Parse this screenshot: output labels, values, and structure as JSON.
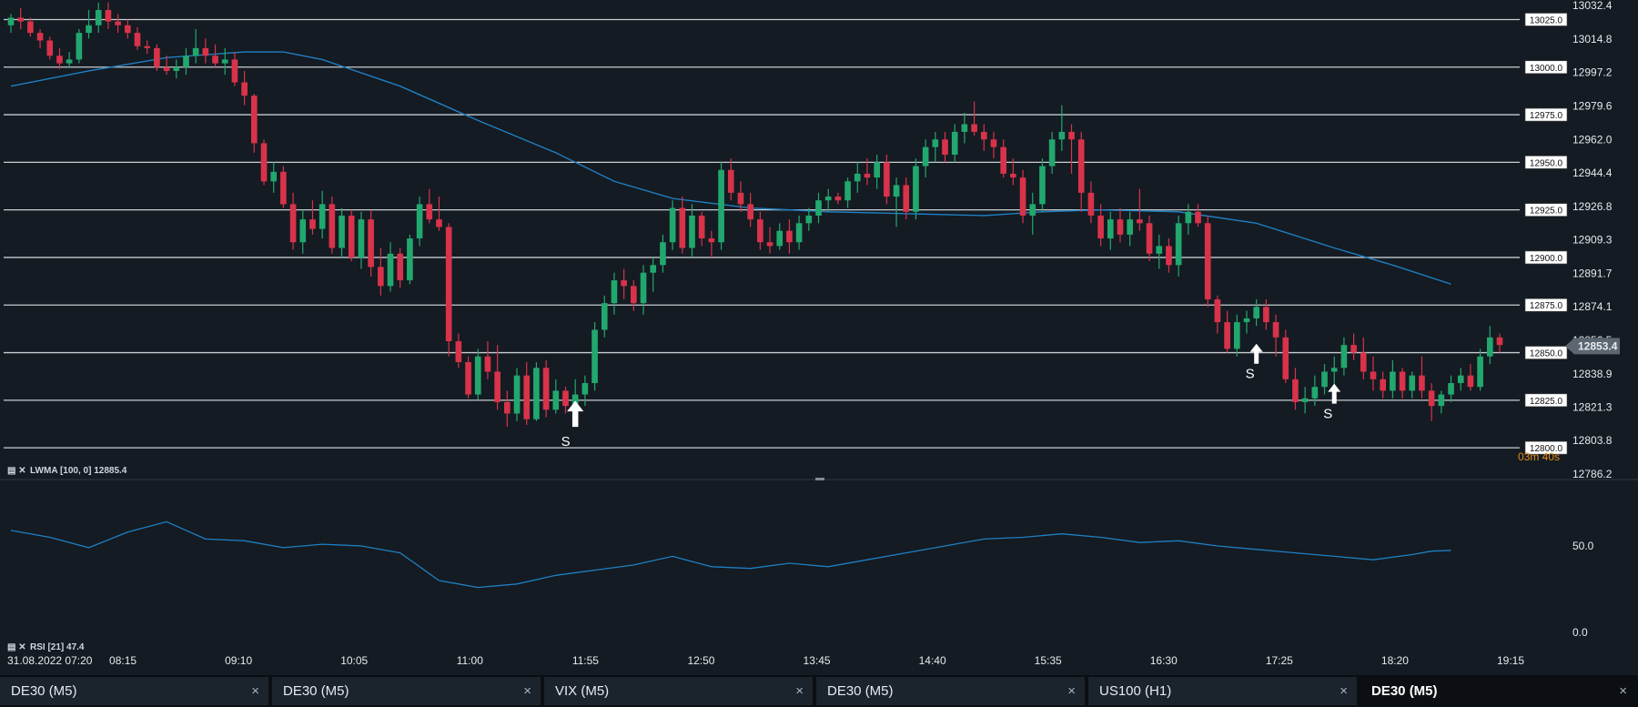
{
  "chart_data": [
    {
      "type": "candlestick",
      "instrument": "DE30 (M5)",
      "ylim": [
        12786.2,
        13032.4
      ],
      "y_ticks": [
        13032.4,
        13014.8,
        12997.2,
        12979.6,
        12962.0,
        12944.4,
        12926.8,
        12909.3,
        12891.7,
        12874.1,
        12856.5,
        12838.9,
        12821.3,
        12803.8,
        12786.2
      ],
      "current_price": "12853.4",
      "countdown": "03m 40s",
      "x_ticks": [
        "31.08.2022 07:20",
        "08:15",
        "09:10",
        "10:05",
        "11:00",
        "11:55",
        "12:50",
        "13:45",
        "14:40",
        "15:35",
        "16:30",
        "17:25",
        "18:20",
        "19:15"
      ],
      "horizontal_levels": [
        13025.0,
        13000.0,
        12975.0,
        12950.0,
        12925.0,
        12900.0,
        12875.0,
        12850.0,
        12825.0,
        12800.0
      ],
      "horizontal_level_labels": [
        "13025.0",
        "13000.0",
        "12975.0",
        "12950.0",
        "12925.0",
        "12900.0",
        "12875.0",
        "12850.0",
        "12825.0",
        "12800.0"
      ],
      "signals": [
        {
          "label": "S",
          "price": 12816
        },
        {
          "label": "S",
          "price": 12848
        },
        {
          "label": "S",
          "price": 12827
        }
      ],
      "candles_ohlc": [
        [
          13022,
          13028,
          13018,
          13026
        ],
        [
          13026,
          13031,
          13020,
          13024
        ],
        [
          13024,
          13026,
          13016,
          13018
        ],
        [
          13018,
          13020,
          13010,
          13014
        ],
        [
          13014,
          13016,
          13004,
          13006
        ],
        [
          13006,
          13010,
          12999,
          13002
        ],
        [
          13002,
          13008,
          13000,
          13004
        ],
        [
          13004,
          13020,
          13002,
          13018
        ],
        [
          13018,
          13030,
          13015,
          13022
        ],
        [
          13022,
          13034,
          13018,
          13030
        ],
        [
          13030,
          13034,
          13020,
          13024
        ],
        [
          13024,
          13028,
          13018,
          13022
        ],
        [
          13022,
          13025,
          13015,
          13018
        ],
        [
          13018,
          13021,
          13009,
          13011
        ],
        [
          13011,
          13014,
          13007,
          13010
        ],
        [
          13010,
          13012,
          12998,
          13000
        ],
        [
          13000,
          13006,
          12996,
          12998
        ],
        [
          12998,
          13004,
          12994,
          13000
        ],
        [
          13000,
          13010,
          12996,
          13006
        ],
        [
          13006,
          13020,
          13002,
          13010
        ],
        [
          13010,
          13015,
          13002,
          13006
        ],
        [
          13006,
          13012,
          13000,
          13002
        ],
        [
          13002,
          13010,
          12996,
          13004
        ],
        [
          13004,
          13008,
          12990,
          12992
        ],
        [
          12992,
          12998,
          12980,
          12985
        ],
        [
          12985,
          12986,
          12955,
          12960
        ],
        [
          12960,
          12962,
          12938,
          12940
        ],
        [
          12940,
          12950,
          12934,
          12945
        ],
        [
          12945,
          12948,
          12926,
          12928
        ],
        [
          12928,
          12934,
          12904,
          12908
        ],
        [
          12908,
          12925,
          12902,
          12920
        ],
        [
          12920,
          12930,
          12912,
          12915
        ],
        [
          12915,
          12935,
          12910,
          12928
        ],
        [
          12928,
          12932,
          12902,
          12905
        ],
        [
          12905,
          12926,
          12900,
          12922
        ],
        [
          12922,
          12925,
          12898,
          12900
        ],
        [
          12900,
          12924,
          12894,
          12920
        ],
        [
          12920,
          12925,
          12890,
          12895
        ],
        [
          12895,
          12905,
          12880,
          12885
        ],
        [
          12885,
          12908,
          12882,
          12902
        ],
        [
          12902,
          12905,
          12884,
          12888
        ],
        [
          12888,
          12912,
          12886,
          12910
        ],
        [
          12910,
          12932,
          12906,
          12928
        ],
        [
          12928,
          12936,
          12918,
          12920
        ],
        [
          12920,
          12932,
          12914,
          12916
        ],
        [
          12916,
          12918,
          12848,
          12856
        ],
        [
          12856,
          12860,
          12842,
          12845
        ],
        [
          12845,
          12848,
          12826,
          12828
        ],
        [
          12828,
          12852,
          12825,
          12848
        ],
        [
          12848,
          12856,
          12836,
          12840
        ],
        [
          12840,
          12854,
          12820,
          12824
        ],
        [
          12824,
          12830,
          12811,
          12818
        ],
        [
          12818,
          12842,
          12814,
          12838
        ],
        [
          12838,
          12845,
          12812,
          12815
        ],
        [
          12815,
          12845,
          12814,
          12842
        ],
        [
          12842,
          12846,
          12816,
          12820
        ],
        [
          12820,
          12836,
          12818,
          12830
        ],
        [
          12830,
          12832,
          12818,
          12822
        ],
        [
          12822,
          12836,
          12818,
          12828
        ],
        [
          12828,
          12838,
          12822,
          12834
        ],
        [
          12834,
          12866,
          12830,
          12862
        ],
        [
          12862,
          12880,
          12858,
          12876
        ],
        [
          12876,
          12892,
          12870,
          12888
        ],
        [
          12888,
          12894,
          12878,
          12885
        ],
        [
          12885,
          12888,
          12872,
          12876
        ],
        [
          12876,
          12896,
          12870,
          12892
        ],
        [
          12892,
          12900,
          12882,
          12896
        ],
        [
          12896,
          12912,
          12892,
          12908
        ],
        [
          12908,
          12930,
          12904,
          12926
        ],
        [
          12926,
          12932,
          12902,
          12905
        ],
        [
          12905,
          12928,
          12900,
          12922
        ],
        [
          12922,
          12924,
          12906,
          12910
        ],
        [
          12910,
          12914,
          12900,
          12908
        ],
        [
          12908,
          12950,
          12904,
          12946
        ],
        [
          12946,
          12952,
          12930,
          12934
        ],
        [
          12934,
          12940,
          12924,
          12928
        ],
        [
          12928,
          12934,
          12916,
          12920
        ],
        [
          12920,
          12924,
          12904,
          12908
        ],
        [
          12908,
          12916,
          12902,
          12906
        ],
        [
          12906,
          12918,
          12904,
          12914
        ],
        [
          12914,
          12920,
          12902,
          12908
        ],
        [
          12908,
          12922,
          12904,
          12918
        ],
        [
          12918,
          12926,
          12914,
          12922
        ],
        [
          12922,
          12934,
          12918,
          12930
        ],
        [
          12930,
          12936,
          12924,
          12932
        ],
        [
          12932,
          12934,
          12928,
          12930
        ],
        [
          12930,
          12942,
          12926,
          12940
        ],
        [
          12940,
          12950,
          12934,
          12944
        ],
        [
          12944,
          12952,
          12938,
          12942
        ],
        [
          12942,
          12954,
          12936,
          12950
        ],
        [
          12950,
          12954,
          12928,
          12932
        ],
        [
          12932,
          12942,
          12916,
          12938
        ],
        [
          12938,
          12942,
          12920,
          12924
        ],
        [
          12924,
          12952,
          12920,
          12948
        ],
        [
          12948,
          12962,
          12942,
          12958
        ],
        [
          12958,
          12966,
          12950,
          12962
        ],
        [
          12962,
          12966,
          12950,
          12954
        ],
        [
          12954,
          12970,
          12950,
          12966
        ],
        [
          12966,
          12976,
          12960,
          12970
        ],
        [
          12970,
          12982,
          12964,
          12966
        ],
        [
          12966,
          12970,
          12956,
          12962
        ],
        [
          12962,
          12966,
          12952,
          12958
        ],
        [
          12958,
          12962,
          12942,
          12944
        ],
        [
          12944,
          12952,
          12938,
          12942
        ],
        [
          12942,
          12946,
          12918,
          12922
        ],
        [
          12922,
          12934,
          12912,
          12928
        ],
        [
          12928,
          12952,
          12924,
          12948
        ],
        [
          12948,
          12966,
          12944,
          12962
        ],
        [
          12962,
          12980,
          12956,
          12966
        ],
        [
          12966,
          12970,
          12944,
          12962
        ],
        [
          12962,
          12966,
          12924,
          12934
        ],
        [
          12934,
          12940,
          12918,
          12922
        ],
        [
          12922,
          12928,
          12906,
          12910
        ],
        [
          12910,
          12924,
          12904,
          12920
        ],
        [
          12920,
          12926,
          12908,
          12912
        ],
        [
          12912,
          12924,
          12906,
          12920
        ],
        [
          12920,
          12936,
          12914,
          12918
        ],
        [
          12918,
          12922,
          12898,
          12902
        ],
        [
          12902,
          12912,
          12894,
          12906
        ],
        [
          12906,
          12910,
          12892,
          12896
        ],
        [
          12896,
          12922,
          12890,
          12918
        ],
        [
          12918,
          12928,
          12912,
          12924
        ],
        [
          12924,
          12928,
          12916,
          12918
        ],
        [
          12918,
          12922,
          12874,
          12878
        ],
        [
          12878,
          12880,
          12860,
          12866
        ],
        [
          12866,
          12872,
          12850,
          12852
        ],
        [
          12852,
          12870,
          12848,
          12866
        ],
        [
          12866,
          12872,
          12860,
          12868
        ],
        [
          12868,
          12878,
          12864,
          12874
        ],
        [
          12874,
          12878,
          12862,
          12866
        ],
        [
          12866,
          12870,
          12848,
          12858
        ],
        [
          12858,
          12862,
          12834,
          12836
        ],
        [
          12836,
          12842,
          12820,
          12824
        ],
        [
          12824,
          12832,
          12818,
          12826
        ],
        [
          12826,
          12838,
          12822,
          12832
        ],
        [
          12832,
          12844,
          12828,
          12840
        ],
        [
          12840,
          12848,
          12832,
          12842
        ],
        [
          12842,
          12858,
          12838,
          12854
        ],
        [
          12854,
          12860,
          12846,
          12850
        ],
        [
          12850,
          12858,
          12836,
          12840
        ],
        [
          12840,
          12848,
          12830,
          12836
        ],
        [
          12836,
          12840,
          12826,
          12830
        ],
        [
          12830,
          12846,
          12826,
          12840
        ],
        [
          12840,
          12842,
          12826,
          12830
        ],
        [
          12830,
          12840,
          12826,
          12838
        ],
        [
          12838,
          12848,
          12826,
          12830
        ],
        [
          12830,
          12834,
          12814,
          12822
        ],
        [
          12822,
          12830,
          12818,
          12828
        ],
        [
          12828,
          12838,
          12824,
          12834
        ],
        [
          12834,
          12842,
          12830,
          12838
        ],
        [
          12838,
          12844,
          12830,
          12832
        ],
        [
          12832,
          12852,
          12830,
          12848
        ],
        [
          12848,
          12864,
          12844,
          12858
        ],
        [
          12858,
          12860,
          12850,
          12854
        ]
      ],
      "lwma_label": "LWMA [100, 0] 12885.4",
      "lwma": [
        [
          0,
          12990
        ],
        [
          8,
          12998
        ],
        [
          16,
          13005
        ],
        [
          24,
          13008
        ],
        [
          28,
          13008
        ],
        [
          32,
          13004
        ],
        [
          40,
          12990
        ],
        [
          48,
          12972
        ],
        [
          56,
          12955
        ],
        [
          62,
          12940
        ],
        [
          68,
          12931
        ],
        [
          76,
          12926
        ],
        [
          84,
          12924
        ],
        [
          92,
          12923
        ],
        [
          100,
          12922
        ],
        [
          106,
          12924
        ],
        [
          112,
          12925
        ],
        [
          120,
          12924
        ],
        [
          128,
          12918
        ],
        [
          136,
          12905
        ],
        [
          142,
          12896
        ],
        [
          148,
          12886
        ]
      ],
      "rsi_label": "RSI [21] 47.4",
      "rsi_ticks": [
        "50.0",
        "0.0"
      ],
      "rsi_range": [
        0,
        100
      ],
      "rsi": [
        [
          0,
          59
        ],
        [
          4,
          55
        ],
        [
          8,
          49
        ],
        [
          12,
          58
        ],
        [
          16,
          64
        ],
        [
          20,
          54
        ],
        [
          24,
          53
        ],
        [
          28,
          49
        ],
        [
          32,
          51
        ],
        [
          36,
          50
        ],
        [
          40,
          46
        ],
        [
          44,
          30
        ],
        [
          48,
          26
        ],
        [
          52,
          28
        ],
        [
          56,
          33
        ],
        [
          60,
          36
        ],
        [
          64,
          39
        ],
        [
          68,
          44
        ],
        [
          72,
          38
        ],
        [
          76,
          37
        ],
        [
          80,
          40
        ],
        [
          84,
          38
        ],
        [
          88,
          42
        ],
        [
          92,
          46
        ],
        [
          96,
          50
        ],
        [
          100,
          54
        ],
        [
          104,
          55
        ],
        [
          108,
          57
        ],
        [
          112,
          55
        ],
        [
          116,
          52
        ],
        [
          120,
          53
        ],
        [
          124,
          50
        ],
        [
          128,
          48
        ],
        [
          132,
          46
        ],
        [
          136,
          44
        ],
        [
          140,
          42
        ],
        [
          144,
          45
        ],
        [
          146,
          47
        ],
        [
          148,
          47.4
        ]
      ]
    }
  ],
  "tabs": [
    {
      "label": "DE30 (M5)",
      "close": "×"
    },
    {
      "label": "DE30 (M5)",
      "close": "×"
    },
    {
      "label": "VIX (M5)",
      "close": "×"
    },
    {
      "label": "DE30 (M5)",
      "close": "×"
    },
    {
      "label": "US100 (H1)",
      "close": "×"
    },
    {
      "label": "DE30 (M5)",
      "close": "×"
    }
  ],
  "colors": {
    "background": "#141b22",
    "bull": "#22a86e",
    "bear": "#d8334a",
    "ma": "#1e7fc2",
    "rsi": "#1e7fc2",
    "level": "#c8cdd2",
    "countdown": "#e08a1e"
  }
}
